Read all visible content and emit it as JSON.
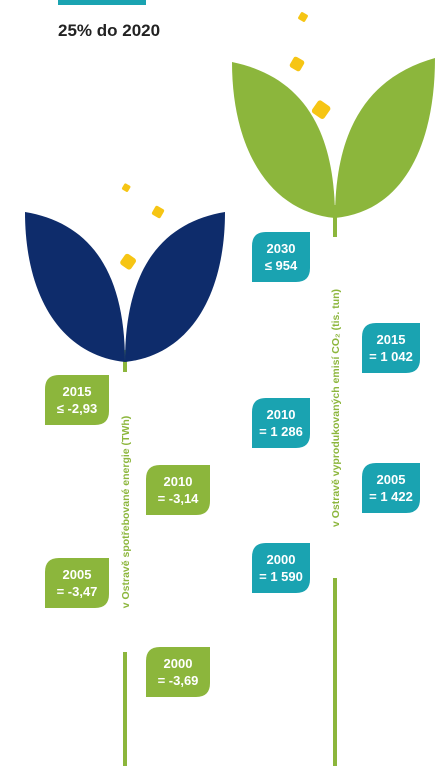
{
  "header": {
    "title": "25% do 2020"
  },
  "plants": [
    {
      "stem_label": "v Ostravě spotřebované energie (TWh)",
      "tags": [
        {
          "year": "2015",
          "value": "≤ -2,93"
        },
        {
          "year": "2010",
          "value": "= -3,14"
        },
        {
          "year": "2005",
          "value": "= -3,47"
        },
        {
          "year": "2000",
          "value": "= -3,69"
        }
      ]
    },
    {
      "stem_label": "v Ostravě vyprodukovaných emisí CO₂ (tis. tun)",
      "tags": [
        {
          "year": "2030",
          "value": "≤ 954"
        },
        {
          "year": "2015",
          "value": "= 1 042"
        },
        {
          "year": "2010",
          "value": "= 1 286"
        },
        {
          "year": "2005",
          "value": "= 1 422"
        },
        {
          "year": "2000",
          "value": "= 1 590"
        }
      ]
    }
  ]
}
